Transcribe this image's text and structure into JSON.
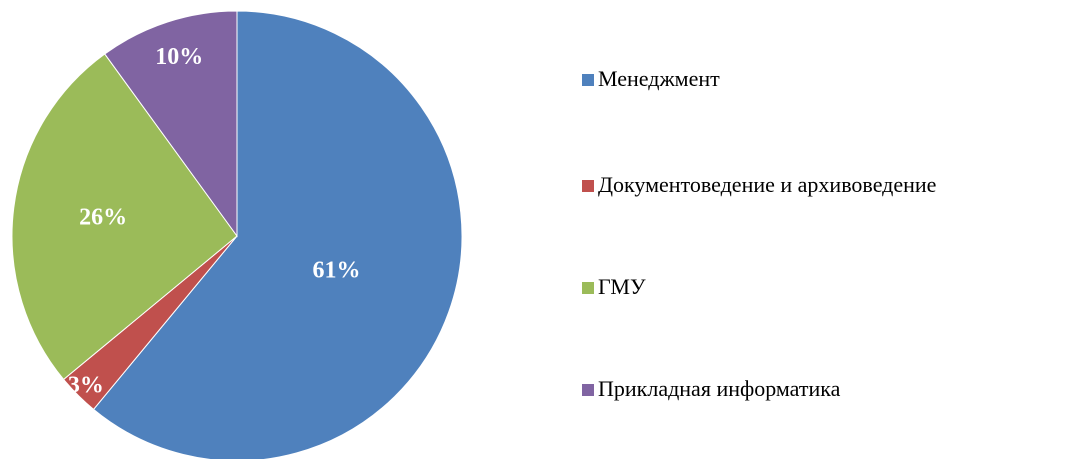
{
  "chart_data": {
    "type": "pie",
    "categories": [
      "Менеджмент",
      "Документоведение и архивоведение",
      "ГМУ",
      "Прикладная информатика"
    ],
    "values": [
      61,
      3,
      26,
      10
    ],
    "value_labels": [
      "61%",
      "3%",
      "26%",
      "10%"
    ],
    "colors": [
      "#4f81bd",
      "#c0504d",
      "#9bbb59",
      "#8064a2"
    ],
    "legend": "right"
  }
}
